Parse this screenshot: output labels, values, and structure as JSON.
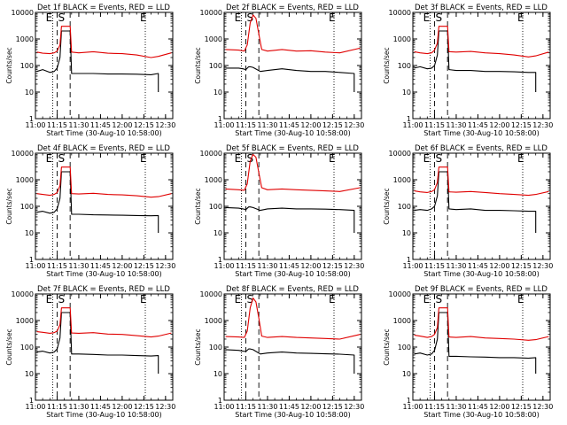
{
  "figure": {
    "colors": {
      "background": "#ffffff",
      "axis": "#000000",
      "events": "#000000",
      "lld": "#e00000"
    }
  },
  "panels_common": {
    "xlabel": "Start Time (30-Aug-10 10:58:00)",
    "ylabel": "Counts/sec",
    "xticklabels": [
      "11:00",
      "11:15",
      "11:30",
      "11:45",
      "12:00",
      "12:15",
      "12:30"
    ],
    "yticklabels": [
      "1",
      "10",
      "100",
      "1000",
      "10000"
    ],
    "marker_labels": [
      "E",
      "S",
      "E"
    ]
  },
  "chart_data": [
    {
      "type": "line",
      "title": "Det 1f BLACK = Events, RED = LLD",
      "xlabel": "Start Time (30-Aug-10 10:58:00)",
      "ylabel": "Counts/sec",
      "y_scale": "log",
      "xlim": [
        "11:00",
        "12:35"
      ],
      "ylim": [
        1,
        10000
      ],
      "vlines_dotted": [
        "11:12",
        "12:16"
      ],
      "vlines_dashed": [
        "11:15",
        "11:24"
      ],
      "series": [
        {
          "name": "BLACK = Events",
          "color": "#000000",
          "x": [
            "11:01",
            "11:05",
            "11:10",
            "11:13",
            "11:15",
            "11:17",
            "11:18",
            "11:24",
            "11:25",
            "11:30",
            "11:40",
            "11:50",
            "12:00",
            "12:10",
            "12:20",
            "12:25",
            "12:25"
          ],
          "y": [
            60,
            70,
            55,
            60,
            80,
            200,
            2000,
            2000,
            50,
            50,
            50,
            48,
            48,
            47,
            45,
            50,
            10
          ]
        },
        {
          "name": "RED = LLD",
          "color": "#e00000",
          "x": [
            "11:01",
            "11:05",
            "11:10",
            "11:13",
            "11:15",
            "11:17",
            "11:18",
            "11:24",
            "11:25",
            "11:30",
            "11:40",
            "11:50",
            "12:00",
            "12:10",
            "12:20",
            "12:25",
            "12:34"
          ],
          "y": [
            320,
            290,
            280,
            300,
            350,
            600,
            3000,
            3000,
            320,
            300,
            330,
            290,
            280,
            250,
            200,
            220,
            300
          ]
        }
      ]
    },
    {
      "type": "line",
      "title": "Det 2f BLACK = Events, RED = LLD",
      "xlabel": "Start Time (30-Aug-10 10:58:00)",
      "ylabel": "Counts/sec",
      "y_scale": "log",
      "xlim": [
        "11:00",
        "12:35"
      ],
      "ylim": [
        1,
        10000
      ],
      "vlines_dotted": [
        "11:12",
        "12:16"
      ],
      "vlines_dashed": [
        "11:15",
        "11:24"
      ],
      "series": [
        {
          "name": "BLACK = Events",
          "color": "#000000",
          "x": [
            "11:01",
            "11:10",
            "11:13",
            "11:15",
            "11:17",
            "11:18",
            "11:20",
            "11:25",
            "11:30",
            "11:40",
            "11:50",
            "12:00",
            "12:10",
            "12:20",
            "12:30",
            "12:30"
          ],
          "y": [
            80,
            80,
            75,
            70,
            90,
            90,
            85,
            60,
            65,
            75,
            65,
            60,
            60,
            55,
            50,
            10
          ]
        },
        {
          "name": "RED = LLD",
          "color": "#e00000",
          "x": [
            "11:01",
            "11:10",
            "11:14",
            "11:16",
            "11:18",
            "11:20",
            "11:22",
            "11:24",
            "11:26",
            "11:30",
            "11:40",
            "11:50",
            "12:00",
            "12:10",
            "12:20",
            "12:34"
          ],
          "y": [
            400,
            380,
            350,
            600,
            4000,
            8000,
            6000,
            1500,
            400,
            350,
            400,
            350,
            360,
            320,
            300,
            450
          ]
        }
      ]
    },
    {
      "type": "line",
      "title": "Det 3f BLACK = Events, RED = LLD",
      "xlabel": "Start Time (30-Aug-10 10:58:00)",
      "ylabel": "Counts/sec",
      "y_scale": "log",
      "xlim": [
        "11:00",
        "12:35"
      ],
      "ylim": [
        1,
        10000
      ],
      "vlines_dotted": [
        "11:12",
        "12:16"
      ],
      "vlines_dashed": [
        "11:15",
        "11:24"
      ],
      "series": [
        {
          "name": "BLACK = Events",
          "color": "#000000",
          "x": [
            "11:01",
            "11:05",
            "11:10",
            "11:13",
            "11:15",
            "11:17",
            "11:18",
            "11:24",
            "11:25",
            "11:30",
            "11:40",
            "11:50",
            "12:00",
            "12:10",
            "12:20",
            "12:25",
            "12:25"
          ],
          "y": [
            80,
            90,
            75,
            80,
            100,
            250,
            2000,
            2000,
            70,
            65,
            65,
            60,
            60,
            58,
            55,
            55,
            10
          ]
        },
        {
          "name": "RED = LLD",
          "color": "#e00000",
          "x": [
            "11:01",
            "11:05",
            "11:10",
            "11:13",
            "11:15",
            "11:17",
            "11:18",
            "11:24",
            "11:25",
            "11:30",
            "11:40",
            "11:50",
            "12:00",
            "12:10",
            "12:20",
            "12:25",
            "12:34"
          ],
          "y": [
            330,
            300,
            280,
            300,
            380,
            700,
            3000,
            3000,
            330,
            320,
            340,
            300,
            280,
            250,
            210,
            230,
            320
          ]
        }
      ]
    },
    {
      "type": "line",
      "title": "Det 4f BLACK = Events, RED = LLD",
      "xlabel": "Start Time (30-Aug-10 10:58:00)",
      "ylabel": "Counts/sec",
      "y_scale": "log",
      "xlim": [
        "11:00",
        "12:35"
      ],
      "ylim": [
        1,
        10000
      ],
      "vlines_dotted": [
        "11:12",
        "12:16"
      ],
      "vlines_dashed": [
        "11:15",
        "11:24"
      ],
      "series": [
        {
          "name": "BLACK = Events",
          "color": "#000000",
          "x": [
            "11:01",
            "11:05",
            "11:10",
            "11:13",
            "11:15",
            "11:17",
            "11:18",
            "11:24",
            "11:25",
            "11:30",
            "11:40",
            "11:50",
            "12:00",
            "12:10",
            "12:20",
            "12:25",
            "12:25"
          ],
          "y": [
            60,
            65,
            55,
            60,
            80,
            200,
            2000,
            2000,
            50,
            50,
            48,
            47,
            46,
            45,
            44,
            45,
            10
          ]
        },
        {
          "name": "RED = LLD",
          "color": "#e00000",
          "x": [
            "11:01",
            "11:05",
            "11:10",
            "11:13",
            "11:15",
            "11:17",
            "11:18",
            "11:24",
            "11:25",
            "11:30",
            "11:40",
            "11:50",
            "12:00",
            "12:10",
            "12:20",
            "12:25",
            "12:34"
          ],
          "y": [
            300,
            280,
            260,
            280,
            330,
            600,
            3000,
            3000,
            300,
            290,
            310,
            280,
            270,
            250,
            220,
            230,
            300
          ]
        }
      ]
    },
    {
      "type": "line",
      "title": "Det 5f BLACK = Events, RED = LLD",
      "xlabel": "Start Time (30-Aug-10 10:58:00)",
      "ylabel": "Counts/sec",
      "y_scale": "log",
      "xlim": [
        "11:00",
        "12:35"
      ],
      "ylim": [
        1,
        10000
      ],
      "vlines_dotted": [
        "11:12",
        "12:16"
      ],
      "vlines_dashed": [
        "11:15",
        "11:24"
      ],
      "series": [
        {
          "name": "BLACK = Events",
          "color": "#000000",
          "x": [
            "11:01",
            "11:10",
            "11:13",
            "11:15",
            "11:17",
            "11:18",
            "11:20",
            "11:25",
            "11:30",
            "11:40",
            "11:50",
            "12:00",
            "12:10",
            "12:20",
            "12:30",
            "12:30"
          ],
          "y": [
            90,
            85,
            80,
            75,
            95,
            95,
            90,
            70,
            80,
            85,
            80,
            80,
            78,
            75,
            70,
            10
          ]
        },
        {
          "name": "RED = LLD",
          "color": "#e00000",
          "x": [
            "11:01",
            "11:10",
            "11:14",
            "11:16",
            "11:18",
            "11:20",
            "11:22",
            "11:24",
            "11:26",
            "11:30",
            "11:40",
            "11:50",
            "12:00",
            "12:10",
            "12:20",
            "12:34"
          ],
          "y": [
            450,
            420,
            400,
            700,
            5000,
            9000,
            7000,
            1800,
            500,
            420,
            450,
            420,
            400,
            380,
            360,
            500
          ]
        }
      ]
    },
    {
      "type": "line",
      "title": "Det 6f BLACK = Events, RED = LLD",
      "xlabel": "Start Time (30-Aug-10 10:58:00)",
      "ylabel": "Counts/sec",
      "y_scale": "log",
      "xlim": [
        "11:00",
        "12:35"
      ],
      "ylim": [
        1,
        10000
      ],
      "vlines_dotted": [
        "11:12",
        "12:16"
      ],
      "vlines_dashed": [
        "11:15",
        "11:24"
      ],
      "series": [
        {
          "name": "BLACK = Events",
          "color": "#000000",
          "x": [
            "11:01",
            "11:05",
            "11:10",
            "11:13",
            "11:15",
            "11:17",
            "11:18",
            "11:24",
            "11:25",
            "11:30",
            "11:40",
            "11:50",
            "12:00",
            "12:10",
            "12:20",
            "12:25",
            "12:25"
          ],
          "y": [
            70,
            75,
            70,
            80,
            100,
            250,
            2000,
            2000,
            80,
            75,
            80,
            70,
            70,
            68,
            65,
            65,
            10
          ]
        },
        {
          "name": "RED = LLD",
          "color": "#e00000",
          "x": [
            "11:01",
            "11:05",
            "11:10",
            "11:13",
            "11:15",
            "11:17",
            "11:18",
            "11:24",
            "11:25",
            "11:30",
            "11:40",
            "11:50",
            "12:00",
            "12:10",
            "12:20",
            "12:25",
            "12:34"
          ],
          "y": [
            380,
            350,
            330,
            360,
            420,
            800,
            3000,
            3000,
            350,
            340,
            360,
            330,
            300,
            280,
            260,
            280,
            360
          ]
        }
      ]
    },
    {
      "type": "line",
      "title": "Det 7f BLACK = Events, RED = LLD",
      "xlabel": "Start Time (30-Aug-10 10:58:00)",
      "ylabel": "Counts/sec",
      "y_scale": "log",
      "xlim": [
        "11:00",
        "12:35"
      ],
      "ylim": [
        1,
        10000
      ],
      "vlines_dotted": [
        "11:12",
        "12:16"
      ],
      "vlines_dashed": [
        "11:15",
        "11:24"
      ],
      "series": [
        {
          "name": "BLACK = Events",
          "color": "#000000",
          "x": [
            "11:01",
            "11:05",
            "11:10",
            "11:13",
            "11:15",
            "11:17",
            "11:18",
            "11:24",
            "11:25",
            "11:30",
            "11:40",
            "11:50",
            "12:00",
            "12:10",
            "12:20",
            "12:25",
            "12:25"
          ],
          "y": [
            65,
            70,
            60,
            65,
            85,
            220,
            2000,
            2000,
            55,
            55,
            53,
            50,
            50,
            48,
            46,
            48,
            10
          ]
        },
        {
          "name": "RED = LLD",
          "color": "#e00000",
          "x": [
            "11:01",
            "11:05",
            "11:10",
            "11:13",
            "11:15",
            "11:17",
            "11:18",
            "11:24",
            "11:25",
            "11:30",
            "11:40",
            "11:50",
            "12:00",
            "12:10",
            "12:20",
            "12:25",
            "12:34"
          ],
          "y": [
            380,
            360,
            330,
            350,
            400,
            700,
            3000,
            3000,
            340,
            330,
            350,
            310,
            300,
            270,
            240,
            260,
            340
          ]
        }
      ]
    },
    {
      "type": "line",
      "title": "Det 8f BLACK = Events, RED = LLD",
      "xlabel": "Start Time (30-Aug-10 10:58:00)",
      "ylabel": "Counts/sec",
      "y_scale": "log",
      "xlim": [
        "11:00",
        "12:35"
      ],
      "ylim": [
        1,
        10000
      ],
      "vlines_dotted": [
        "11:12",
        "12:16"
      ],
      "vlines_dashed": [
        "11:15",
        "11:24"
      ],
      "series": [
        {
          "name": "BLACK = Events",
          "color": "#000000",
          "x": [
            "11:01",
            "11:10",
            "11:13",
            "11:15",
            "11:17",
            "11:18",
            "11:20",
            "11:25",
            "11:30",
            "11:40",
            "11:50",
            "12:00",
            "12:10",
            "12:20",
            "12:30",
            "12:30"
          ],
          "y": [
            80,
            75,
            70,
            68,
            85,
            85,
            80,
            55,
            60,
            65,
            60,
            58,
            56,
            54,
            50,
            10
          ]
        },
        {
          "name": "RED = LLD",
          "color": "#e00000",
          "x": [
            "11:01",
            "11:10",
            "11:14",
            "11:16",
            "11:18",
            "11:20",
            "11:22",
            "11:24",
            "11:26",
            "11:30",
            "11:40",
            "11:50",
            "12:00",
            "12:10",
            "12:20",
            "12:34"
          ],
          "y": [
            250,
            240,
            230,
            400,
            3000,
            7000,
            5000,
            1200,
            260,
            230,
            250,
            230,
            220,
            210,
            200,
            300
          ]
        }
      ]
    },
    {
      "type": "line",
      "title": "Det 9f BLACK = Events, RED = LLD",
      "xlabel": "Start Time (30-Aug-10 10:58:00)",
      "ylabel": "Counts/sec",
      "y_scale": "log",
      "xlim": [
        "11:00",
        "12:35"
      ],
      "ylim": [
        1,
        10000
      ],
      "vlines_dotted": [
        "11:12",
        "12:16"
      ],
      "vlines_dashed": [
        "11:15",
        "11:24"
      ],
      "series": [
        {
          "name": "BLACK = Events",
          "color": "#000000",
          "x": [
            "11:01",
            "11:05",
            "11:10",
            "11:13",
            "11:15",
            "11:17",
            "11:18",
            "11:24",
            "11:25",
            "11:30",
            "11:40",
            "11:50",
            "12:00",
            "12:10",
            "12:20",
            "12:25",
            "12:25"
          ],
          "y": [
            55,
            60,
            50,
            55,
            75,
            200,
            2000,
            2000,
            45,
            45,
            43,
            42,
            40,
            40,
            38,
            40,
            10
          ]
        },
        {
          "name": "RED = LLD",
          "color": "#e00000",
          "x": [
            "11:01",
            "11:05",
            "11:10",
            "11:13",
            "11:15",
            "11:17",
            "11:18",
            "11:24",
            "11:25",
            "11:30",
            "11:40",
            "11:50",
            "12:00",
            "12:10",
            "12:20",
            "12:25",
            "12:34"
          ],
          "y": [
            280,
            260,
            230,
            250,
            300,
            550,
            3000,
            3000,
            240,
            230,
            250,
            220,
            210,
            200,
            180,
            190,
            250
          ]
        }
      ]
    }
  ]
}
